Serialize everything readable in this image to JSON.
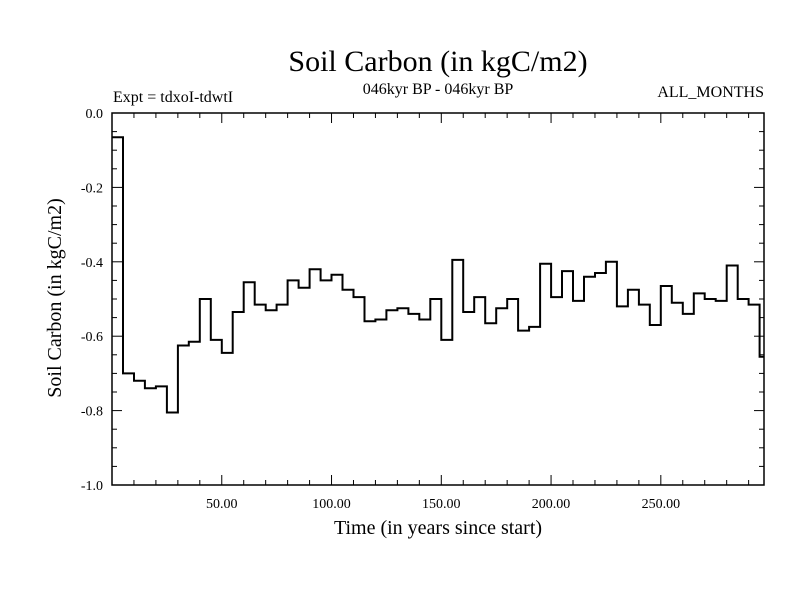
{
  "chart_data": {
    "type": "line",
    "step": true,
    "title": "Soil Carbon (in kgC/m2)",
    "subtitle": "046kyr BP - 046kyr BP",
    "left_label": "Expt = tdxoI-tdwtI",
    "right_label": "ALL_MONTHS",
    "xlabel": "Time (in years since start)",
    "ylabel": "Soil Carbon (in kgC/m2)",
    "xlim": [
      0,
      297
    ],
    "ylim": [
      -1.0,
      0.0
    ],
    "x_ticks": [
      50,
      100,
      150,
      200,
      250
    ],
    "x_tick_labels": [
      "50.00",
      "100.00",
      "150.00",
      "200.00",
      "250.00"
    ],
    "y_ticks": [
      0.0,
      -0.2,
      -0.4,
      -0.6,
      -0.8,
      -1.0
    ],
    "y_tick_labels": [
      "0.0",
      "-0.2",
      "-0.4",
      "-0.6",
      "-0.8",
      "-1.0"
    ],
    "grid": false,
    "series": [
      {
        "x": [
          0,
          5,
          10,
          15,
          20,
          25,
          30,
          35,
          40,
          45,
          50,
          55,
          60,
          65,
          70,
          75,
          80,
          85,
          90,
          95,
          100,
          105,
          110,
          115,
          120,
          125,
          130,
          135,
          140,
          145,
          150,
          155,
          160,
          165,
          170,
          175,
          180,
          185,
          190,
          195,
          200,
          205,
          210,
          215,
          220,
          225,
          230,
          235,
          240,
          245,
          250,
          255,
          260,
          265,
          270,
          275,
          280,
          285,
          290,
          295
        ],
        "values": [
          -0.065,
          -0.7,
          -0.72,
          -0.74,
          -0.735,
          -0.805,
          -0.625,
          -0.615,
          -0.5,
          -0.61,
          -0.645,
          -0.535,
          -0.455,
          -0.515,
          -0.53,
          -0.515,
          -0.45,
          -0.47,
          -0.42,
          -0.45,
          -0.435,
          -0.475,
          -0.495,
          -0.56,
          -0.555,
          -0.53,
          -0.525,
          -0.54,
          -0.555,
          -0.5,
          -0.61,
          -0.395,
          -0.535,
          -0.495,
          -0.565,
          -0.525,
          -0.5,
          -0.585,
          -0.575,
          -0.405,
          -0.495,
          -0.425,
          -0.505,
          -0.44,
          -0.43,
          -0.4,
          -0.52,
          -0.475,
          -0.515,
          -0.57,
          -0.465,
          -0.51,
          -0.54,
          -0.485,
          -0.5,
          -0.505,
          -0.41,
          -0.5,
          -0.515,
          -0.655
        ]
      }
    ]
  }
}
